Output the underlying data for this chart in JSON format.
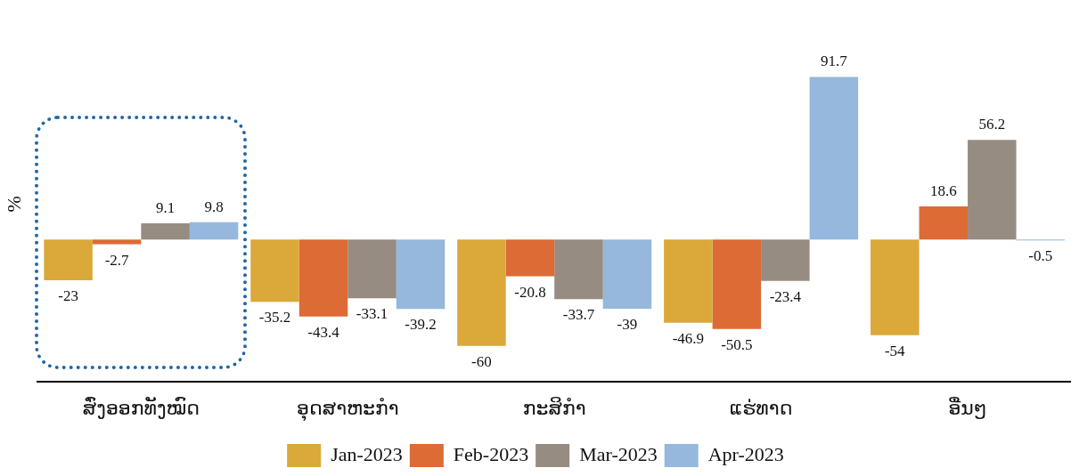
{
  "chart_data": {
    "type": "bar",
    "ylabel": "%",
    "categories": [
      "ສົ່ງອອກທັງໝົດ",
      "ອຸດສາຫະກຳ",
      "ກະສິກຳ",
      "ແຮ່ທາດ",
      "ອື່ນໆ"
    ],
    "series": [
      {
        "name": "Jan-2023",
        "color": "#dba83a",
        "values": [
          -23,
          -35.2,
          -60,
          -46.9,
          -54
        ]
      },
      {
        "name": "Feb-2023",
        "color": "#dd6b35",
        "values": [
          -2.7,
          -43.4,
          -20.8,
          -50.5,
          18.6
        ]
      },
      {
        "name": "Mar-2023",
        "color": "#978c82",
        "values": [
          9.1,
          -33.1,
          -33.7,
          -23.4,
          56.2
        ]
      },
      {
        "name": "Apr-2023",
        "color": "#95b8dc",
        "values": [
          9.8,
          -39.2,
          -39,
          91.7,
          -0.5
        ]
      }
    ],
    "data_labels": true,
    "legend": "bottom",
    "grid": false
  }
}
